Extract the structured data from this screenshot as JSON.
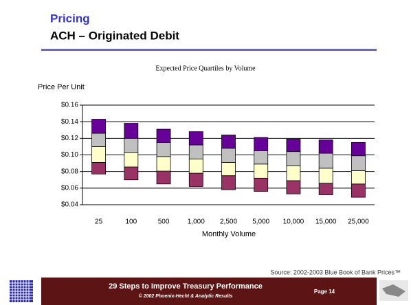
{
  "slide": {
    "heading": "Pricing",
    "subheading": "ACH – Originated Debit",
    "source": "Source:  2002-2003 Blue Book of Bank Prices™",
    "footer_title": "29 Steps to Improve Treasury Performance",
    "footer_copyright": "© 2002 Phoenix-Hecht & Analytic Results",
    "page": "Page 14"
  },
  "chart_data": {
    "type": "quartile-bar",
    "title": "Expected Price Quartiles by Volume",
    "y_label": "Price Per Unit",
    "x_label": "Monthly Volume",
    "categories": [
      "25",
      "100",
      "500",
      "1,000",
      "2,500",
      "5,000",
      "10,000",
      "15,000",
      "25,000"
    ],
    "quartile_keys": [
      "min",
      "q1",
      "median",
      "q3",
      "max"
    ],
    "quartiles": {
      "min": [
        0.077,
        0.07,
        0.065,
        0.062,
        0.058,
        0.056,
        0.053,
        0.052,
        0.049
      ],
      "q1": [
        0.091,
        0.0855,
        0.0805,
        0.078,
        0.075,
        0.072,
        0.069,
        0.066,
        0.065
      ],
      "median": [
        0.11,
        0.103,
        0.098,
        0.095,
        0.091,
        0.089,
        0.087,
        0.084,
        0.081
      ],
      "q3": [
        0.126,
        0.12,
        0.115,
        0.112,
        0.108,
        0.105,
        0.104,
        0.102,
        0.099
      ],
      "max": [
        0.143,
        0.138,
        0.131,
        0.128,
        0.124,
        0.121,
        0.119,
        0.118,
        0.115
      ]
    },
    "colors": [
      "#993366",
      "#ffffcc",
      "#c0c0c0",
      "#660099"
    ],
    "ylim": [
      0.04,
      0.16
    ],
    "yticks": [
      {
        "value": 0.04,
        "label": "$0.04"
      },
      {
        "value": 0.06,
        "label": "$0.06"
      },
      {
        "value": 0.08,
        "label": "$0.08"
      },
      {
        "value": 0.1,
        "label": "$0.10"
      },
      {
        "value": 0.12,
        "label": "$0.12"
      },
      {
        "value": 0.14,
        "label": "$0.14"
      },
      {
        "value": 0.16,
        "label": "$0.16"
      }
    ],
    "grid": true
  }
}
